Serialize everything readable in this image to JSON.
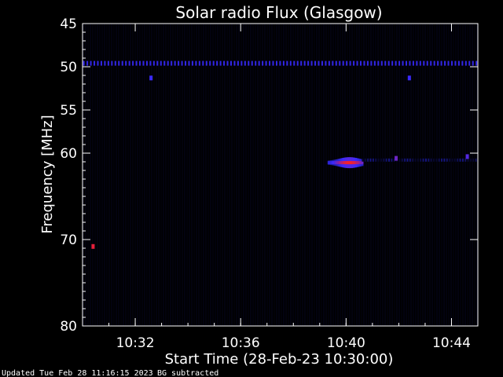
{
  "chart_data": {
    "type": "heatmap",
    "title": "Solar radio Flux (Glasgow)",
    "xlabel": "Start Time (28-Feb-23 10:30:00)",
    "ylabel": "Frequency [MHz]",
    "x_range": [
      "10:30",
      "10:45"
    ],
    "y_range": [
      45,
      80
    ],
    "y_axis_inverted": true,
    "x_ticks": [
      "10:32",
      "10:36",
      "10:40",
      "10:44"
    ],
    "y_ticks": [
      45,
      50,
      55,
      60,
      70,
      80
    ],
    "grid": false,
    "colormap": [
      "#000000",
      "#0a0a3a",
      "#1a1a9a",
      "#3a2aff",
      "#a0208a",
      "#ff2020"
    ],
    "features": [
      {
        "kind": "dotted-line",
        "freq_mhz": 49.6,
        "time_start": "10:30",
        "time_end": "10:45",
        "intensity": 0.55
      },
      {
        "kind": "spot",
        "freq_mhz": 51.3,
        "time": "10:32.6",
        "intensity": 0.6
      },
      {
        "kind": "spot",
        "freq_mhz": 51.3,
        "time": "10:42.4",
        "intensity": 0.6
      },
      {
        "kind": "spot",
        "freq_mhz": 70.8,
        "time": "10:30.4",
        "intensity": 0.95
      },
      {
        "kind": "burst",
        "freq_mhz": 61.1,
        "time_start": "10:39.3",
        "time_end": "10:40.6",
        "peak_time": "10:40.1",
        "intensity": 1.0
      },
      {
        "kind": "band",
        "freq_mhz": 60.8,
        "time_start": "10:40.6",
        "time_end": "10:45",
        "intensity": 0.5
      },
      {
        "kind": "spot",
        "freq_mhz": 60.6,
        "time": "10:41.9",
        "intensity": 0.7
      },
      {
        "kind": "spot",
        "freq_mhz": 60.4,
        "time": "10:44.6",
        "intensity": 0.65
      }
    ]
  },
  "footer": {
    "updated": "Updated Tue Feb 28 11:16:15 2023",
    "mode": "BG subtracted"
  }
}
